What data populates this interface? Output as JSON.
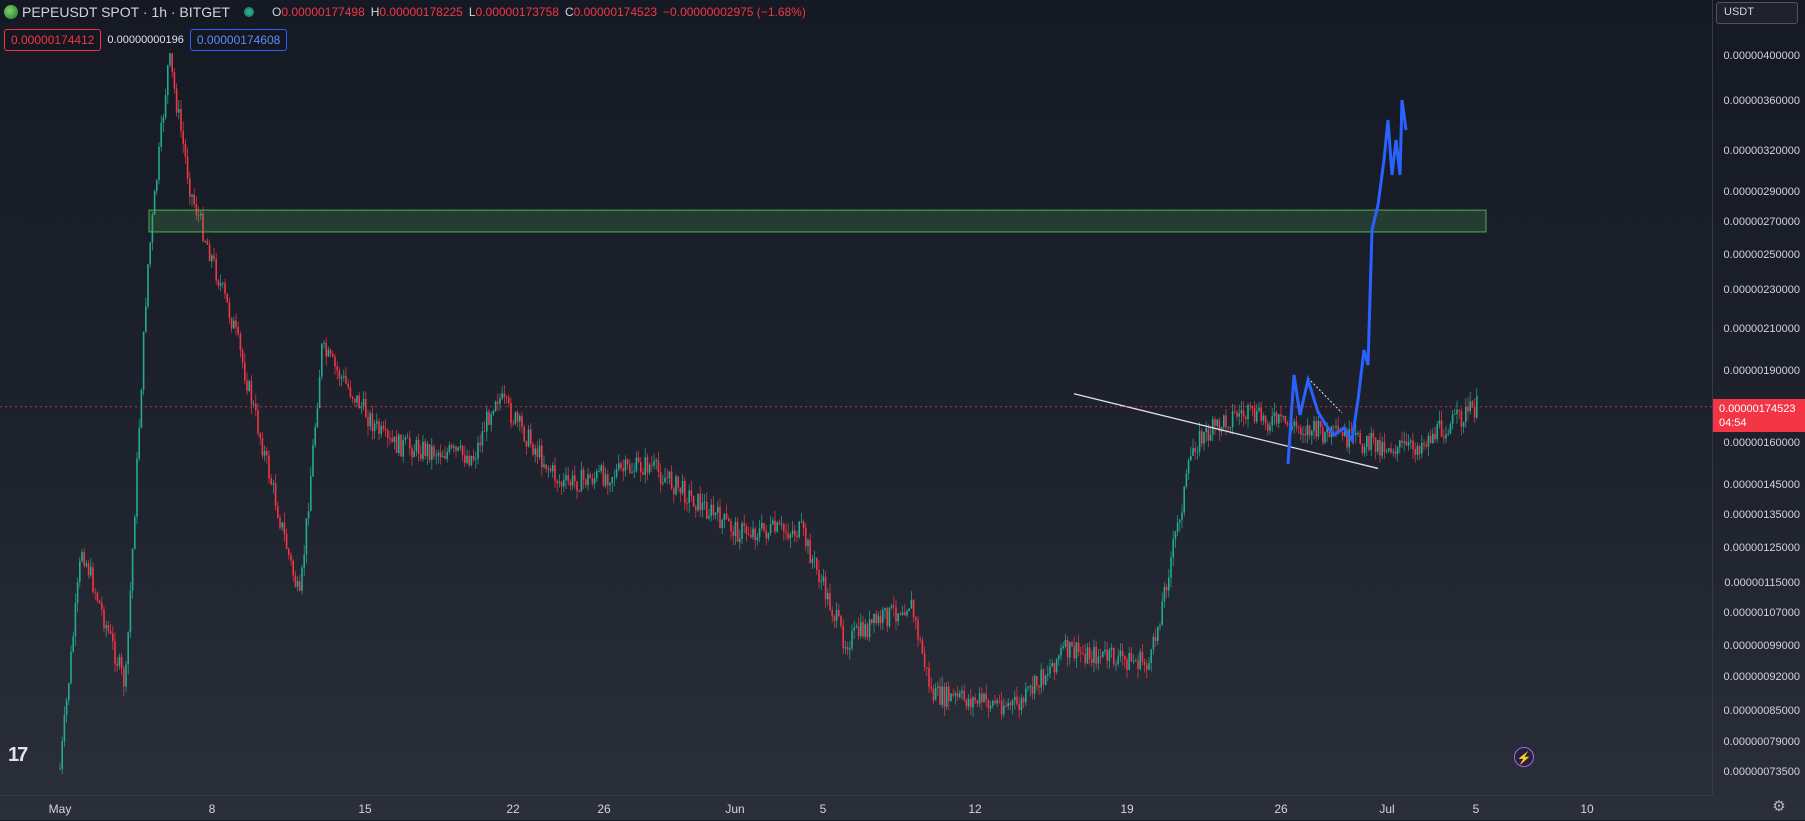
{
  "legend": {
    "symbol": "PEPEUSDT SPOT · 1h · BITGET",
    "open_label": "O",
    "open": "0.00000177498",
    "high_label": "H",
    "high": "0.00000178225",
    "low_label": "L",
    "low": "0.00000173758",
    "close_label": "C",
    "close": "0.00000174523",
    "change": "−0.00000002975 (−1.68%)"
  },
  "quote": {
    "sell": "0.00000174412",
    "spread": "0.00000000196",
    "buy": "0.00000174608"
  },
  "currency": "USDT",
  "last_price": {
    "price": "0.00000174523",
    "countdown": "04:54"
  },
  "price_ticks": [
    "0.00000400000",
    "0.00000360000",
    "0.00000320000",
    "0.00000290000",
    "0.00000270000",
    "0.00000250000",
    "0.00000230000",
    "0.00000210000",
    "0.00000190000",
    "0.00000160000",
    "0.00000145000",
    "0.00000135000",
    "0.00000125000",
    "0.00000115000",
    "0.00000107000",
    "0.00000099000",
    "0.00000092000",
    "0.00000085000",
    "0.00000079000",
    "0.00000073500"
  ],
  "time_labels": [
    "May",
    "8",
    "15",
    "22",
    "26",
    "Jun",
    "5",
    "12",
    "19",
    "26",
    "Jul",
    "5",
    "10"
  ],
  "colors": {
    "up": "#22ab94",
    "down": "#f23645",
    "projection": "#2962ff",
    "zone": "#2e6b3a"
  },
  "chart_data": {
    "type": "candlestick",
    "symbol": "PEPEUSDT",
    "interval": "1h",
    "y_scale": "log",
    "ylim": [
      7.35e-07,
      4.1e-06
    ],
    "key_points": [
      {
        "x": "May 1",
        "y": 7.4e-07
      },
      {
        "x": "May 2",
        "y": 1.25e-06
      },
      {
        "x": "May 4",
        "y": 9e-07
      },
      {
        "x": "May 5",
        "y": 2.4e-06
      },
      {
        "x": "May 6",
        "y": 4e-06
      },
      {
        "x": "May 7",
        "y": 2.9e-06
      },
      {
        "x": "May 9",
        "y": 2.1e-06
      },
      {
        "x": "May 12",
        "y": 1.1e-06
      },
      {
        "x": "May 13",
        "y": 2e-06
      },
      {
        "x": "May 16",
        "y": 1.6e-06
      },
      {
        "x": "May 20",
        "y": 1.55e-06
      },
      {
        "x": "May 21",
        "y": 1.8e-06
      },
      {
        "x": "May 24",
        "y": 1.45e-06
      },
      {
        "x": "May 28",
        "y": 1.52e-06
      },
      {
        "x": "Jun 1",
        "y": 1.3e-06
      },
      {
        "x": "Jun 4",
        "y": 1.3e-06
      },
      {
        "x": "Jun 6",
        "y": 1e-06
      },
      {
        "x": "Jun 9",
        "y": 1.1e-06
      },
      {
        "x": "Jun 10",
        "y": 8.8e-07
      },
      {
        "x": "Jun 14",
        "y": 8.6e-07
      },
      {
        "x": "Jun 16",
        "y": 9.8e-07
      },
      {
        "x": "Jun 20",
        "y": 9.5e-07
      },
      {
        "x": "Jun 22",
        "y": 1.6e-06
      },
      {
        "x": "Jun 24",
        "y": 1.72e-06
      },
      {
        "x": "Jun 30",
        "y": 1.6e-06
      },
      {
        "x": "Jul 2",
        "y": 1.58e-06
      },
      {
        "x": "Jul 5",
        "y": 1.74523e-06
      }
    ],
    "projection_points": [
      {
        "x": "Jul 3",
        "y": 1.55e-06
      },
      {
        "x": "Jul 4",
        "y": 1.9e-06
      },
      {
        "x": "Jul 6",
        "y": 1.62e-06
      },
      {
        "x": "Jul 7",
        "y": 1.9e-06
      },
      {
        "x": "Jul 8",
        "y": 3.1e-06
      },
      {
        "x": "Jul 9",
        "y": 3.4e-06
      }
    ],
    "resistance_zone": [
      2.64e-06,
      2.78e-06
    ],
    "trendline": [
      {
        "x": "Jun 22",
        "y": 1.8e-06
      },
      {
        "x": "Jul 6",
        "y": 1.6e-06
      }
    ]
  }
}
